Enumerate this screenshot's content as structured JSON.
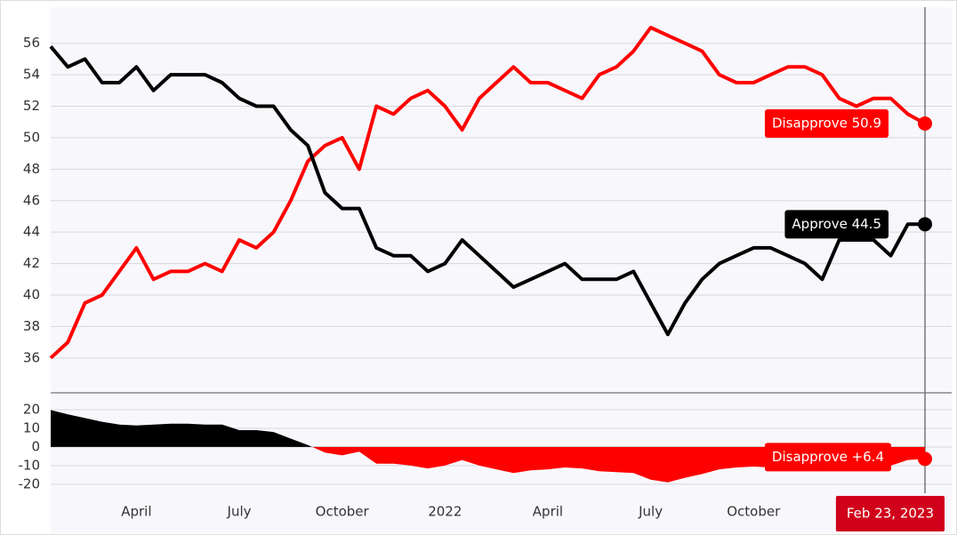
{
  "chart_data": [
    {
      "type": "line",
      "series": [
        {
          "name": "Disapprove",
          "color": "#ff0000",
          "values": [
            36,
            37,
            39.5,
            40,
            41.5,
            43,
            41,
            41.5,
            41.5,
            42,
            41.5,
            43.5,
            43,
            44,
            46,
            48.5,
            49.5,
            50,
            48,
            52,
            51.5,
            52.5,
            53,
            52,
            50.5,
            52.5,
            53.5,
            54.5,
            53.5,
            53.5,
            53,
            52.5,
            54,
            54.5,
            55.5,
            57,
            56.5,
            56,
            55.5,
            54,
            53.5,
            53.5,
            54,
            54.5,
            54.5,
            54,
            52.5,
            52,
            52.5,
            52.5,
            51.5,
            50.9
          ],
          "value_labels": [
            null,
            null,
            null,
            null,
            null,
            null,
            null,
            null,
            null,
            null,
            null,
            null,
            null,
            null,
            null,
            null,
            null,
            null,
            null,
            null,
            null,
            null,
            null,
            null,
            null,
            null,
            null,
            null,
            null,
            null,
            null,
            null,
            null,
            null,
            null,
            null,
            null,
            null,
            null,
            null,
            null,
            null,
            null,
            null,
            null,
            null,
            null,
            null,
            null,
            null,
            null,
            "Disapprove 50.9"
          ]
        },
        {
          "name": "Approve",
          "color": "#000000",
          "values": [
            55.8,
            54.5,
            55,
            53.5,
            53.5,
            54.5,
            53,
            54,
            54,
            54,
            53.5,
            52.5,
            52,
            52,
            50.5,
            49.5,
            46.5,
            45.5,
            45.5,
            43,
            42.5,
            42.5,
            41.5,
            42,
            43.5,
            42.5,
            41.5,
            40.5,
            41,
            41.5,
            42,
            41,
            41,
            41,
            41.5,
            39.5,
            37.5,
            39.5,
            41,
            42,
            42.5,
            43,
            43,
            42.5,
            42,
            41,
            43.5,
            43.5,
            43.5,
            42.5,
            44.5,
            44.5
          ],
          "value_labels": [
            null,
            null,
            null,
            null,
            null,
            null,
            null,
            null,
            null,
            null,
            null,
            null,
            null,
            null,
            null,
            null,
            null,
            null,
            null,
            null,
            null,
            null,
            null,
            null,
            null,
            null,
            null,
            null,
            null,
            null,
            null,
            null,
            null,
            null,
            null,
            null,
            null,
            null,
            null,
            null,
            null,
            null,
            null,
            null,
            null,
            null,
            null,
            null,
            null,
            null,
            null,
            "Approve 44.5"
          ]
        }
      ],
      "ylim": [
        33.9,
        58.3
      ],
      "yticks": [
        36,
        38,
        40,
        42,
        44,
        46,
        48,
        50,
        52,
        54,
        56
      ],
      "grid": true
    },
    {
      "type": "area",
      "categories": [
        null,
        null,
        null,
        null,
        null,
        "April",
        null,
        null,
        null,
        null,
        null,
        "July",
        null,
        null,
        null,
        null,
        null,
        "October",
        null,
        null,
        null,
        null,
        null,
        "2022",
        null,
        null,
        null,
        null,
        null,
        "April",
        null,
        null,
        null,
        null,
        null,
        "July",
        null,
        null,
        null,
        null,
        null,
        "October",
        null,
        null,
        null,
        null,
        null,
        null,
        null,
        null,
        null,
        "Feb 23, 2023"
      ],
      "values": [
        19.8,
        17.5,
        15.5,
        13.5,
        12,
        11.5,
        12,
        12.5,
        12.5,
        12,
        12,
        9,
        9,
        8,
        4.5,
        1,
        -3,
        -4.5,
        -2.5,
        -9,
        -9,
        -10,
        -11.5,
        -10,
        -7,
        -10,
        -12,
        -14,
        -12.5,
        -12,
        -11,
        -11.5,
        -13,
        -13.5,
        -14,
        -17.5,
        -19,
        -16.5,
        -14.5,
        -12,
        -11,
        -10.5,
        -11,
        -12,
        -12.5,
        -13,
        -9,
        -8.5,
        -9,
        -10,
        -7,
        -6.4
      ],
      "value_labels": [
        null,
        null,
        null,
        null,
        null,
        null,
        null,
        null,
        null,
        null,
        null,
        null,
        null,
        null,
        null,
        null,
        null,
        null,
        null,
        null,
        null,
        null,
        null,
        null,
        null,
        null,
        null,
        null,
        null,
        null,
        null,
        null,
        null,
        null,
        null,
        null,
        null,
        null,
        null,
        null,
        null,
        null,
        null,
        null,
        null,
        null,
        null,
        null,
        null,
        null,
        null,
        "Disapprove +6.4"
      ],
      "color": "#000000",
      "negative_color": "#ff0000",
      "ylim": [
        -24.8,
        27.6
      ],
      "yticks": [
        20,
        10,
        0,
        -10,
        -20
      ],
      "grid": true
    }
  ]
}
